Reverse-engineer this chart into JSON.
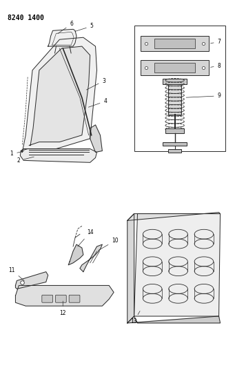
{
  "title": "8240 1400",
  "bg": "#ffffff",
  "lc": "#2a2a2a",
  "tc": "#000000",
  "fig_w": 3.41,
  "fig_h": 5.33,
  "dpi": 100,
  "lw": 0.7,
  "fs": 5.5
}
